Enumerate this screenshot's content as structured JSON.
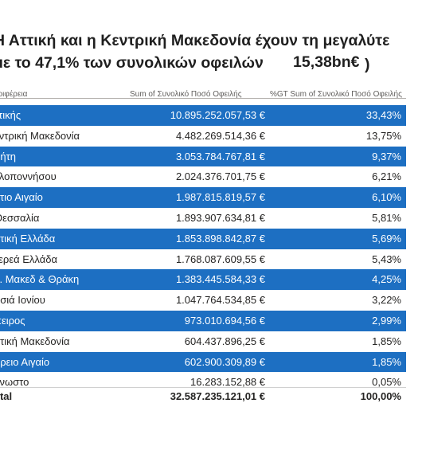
{
  "headline": {
    "line1": "Η Αττική και η Κεντρική Μακεδονία  έχουν τη μεγαλύτε",
    "line2": "με το 47,1% των συνολικών οφειλών",
    "amount": "15,38bn€",
    "paren": ")"
  },
  "table": {
    "headers": [
      "εριφέρεια",
      "Sum of Συνολικό Ποσό Οφειλής",
      "%GT Sum of Συνολικό Ποσό Οφειλής"
    ],
    "rows": [
      {
        "name": "ττικής",
        "amount": "10.895.252.057,53 €",
        "pct": "33,43%",
        "highlight": true
      },
      {
        "name": "εντρική Μακεδονία",
        "amount": "4.482.269.514,36 €",
        "pct": "13,75%",
        "highlight": false
      },
      {
        "name": "ρήτη",
        "amount": "3.053.784.767,81 €",
        "pct": "9,37%",
        "highlight": true
      },
      {
        "name": "ελοποννήσου",
        "amount": "2.024.376.701,75 €",
        "pct": "6,21%",
        "highlight": false
      },
      {
        "name": "ότιο Αιγαίο",
        "amount": "1.987.815.819,57 €",
        "pct": "6,10%",
        "highlight": true
      },
      {
        "name": "Θεσσαλία",
        "amount": "1.893.907.634,81 €",
        "pct": "5,81%",
        "highlight": false
      },
      {
        "name": "υτική Ελλάδα",
        "amount": "1.853.898.842,87 €",
        "pct": "5,69%",
        "highlight": true
      },
      {
        "name": "τερεά Ελλάδα",
        "amount": "1.768.087.609,55 €",
        "pct": "5,43%",
        "highlight": false
      },
      {
        "name": "ν. Μακεδ & Θράκη",
        "amount": "1.383.445.584,33 €",
        "pct": "4,25%",
        "highlight": true
      },
      {
        "name": "ησιά Ιονίου",
        "amount": "1.047.764.534,85 €",
        "pct": "3,22%",
        "highlight": false
      },
      {
        "name": "πειρος",
        "amount": "973.010.694,56 €",
        "pct": "2,99%",
        "highlight": true
      },
      {
        "name": "υτική Μακεδονία",
        "amount": "604.437.896,25 €",
        "pct": "1,85%",
        "highlight": false
      },
      {
        "name": "όρειο Αιγαίο",
        "amount": "602.900.309,89 €",
        "pct": "1,85%",
        "highlight": true
      },
      {
        "name": "γνωστο",
        "amount": "16.283.152,88 €",
        "pct": "0,05%",
        "highlight": false
      }
    ],
    "total": {
      "name": "otal",
      "amount": "32.587.235.121,01 €",
      "pct": "100,00%"
    }
  },
  "colors": {
    "highlight": "#1d6fc2"
  }
}
